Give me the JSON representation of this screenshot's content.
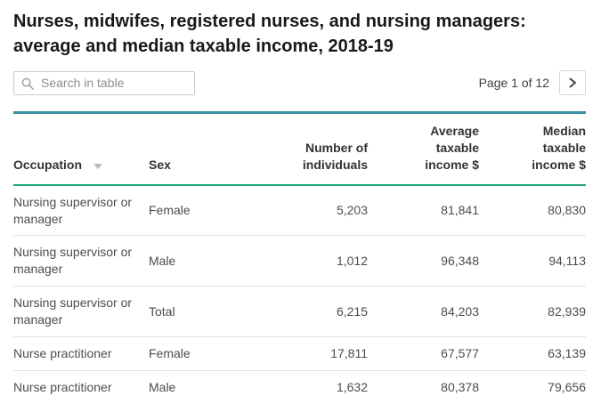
{
  "page": {
    "title": "Nurses, midwifes, registered nurses, and nursing managers:\naverage and median taxable income, 2018-19"
  },
  "toolbar": {
    "search_placeholder": "Search in table",
    "search_icon": "magnifier-icon",
    "page_label": "Page 1 of 12",
    "next_icon": "chevron-right-icon"
  },
  "table": {
    "headers": [
      "Occupation",
      "Sex",
      "Number of\nindividuals",
      "Average\ntaxable\nincome $",
      "Median\ntaxable\nincome $"
    ],
    "sort_icon": "sort-descending-triangle-icon",
    "rows": [
      {
        "occupation": "Nursing supervisor or manager",
        "sex": "Female",
        "individuals": "5,203",
        "average": "81,841",
        "median": "80,830"
      },
      {
        "occupation": "Nursing supervisor or manager",
        "sex": "Male",
        "individuals": "1,012",
        "average": "96,348",
        "median": "94,113"
      },
      {
        "occupation": "Nursing supervisor or manager",
        "sex": "Total",
        "individuals": "6,215",
        "average": "84,203",
        "median": "82,939"
      },
      {
        "occupation": "Nurse practitioner",
        "sex": "Female",
        "individuals": "17,811",
        "average": "67,577",
        "median": "63,139"
      },
      {
        "occupation": "Nurse practitioner",
        "sex": "Male",
        "individuals": "1,632",
        "average": "80,378",
        "median": "79,656"
      }
    ]
  },
  "chart_data": {
    "type": "table",
    "title": "Nurses, midwifes, registered nurses, and nursing managers: average and median taxable income, 2018-19",
    "columns": [
      "Occupation",
      "Sex",
      "Number of individuals",
      "Average taxable income $",
      "Median taxable income $"
    ],
    "rows": [
      [
        "Nursing supervisor or manager",
        "Female",
        5203,
        81841,
        80830
      ],
      [
        "Nursing supervisor or manager",
        "Male",
        1012,
        96348,
        94113
      ],
      [
        "Nursing supervisor or manager",
        "Total",
        6215,
        84203,
        82939
      ],
      [
        "Nurse practitioner",
        "Female",
        17811,
        67577,
        63139
      ],
      [
        "Nurse practitioner",
        "Male",
        1632,
        80378,
        79656
      ]
    ]
  },
  "colors": {
    "table_top_border": "#3a8fa3",
    "header_bottom_border": "#1fa47e",
    "row_separator": "#e0e0e0"
  }
}
